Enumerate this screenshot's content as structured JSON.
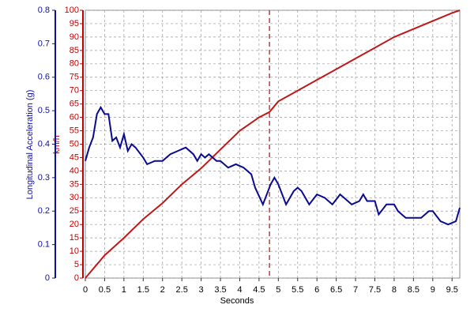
{
  "chart_data": {
    "type": "line",
    "xlabel": "Seconds",
    "ylabel": "Longitudinal Acceleration (g)",
    "y2label": "km/h",
    "xlim": [
      0,
      9.7
    ],
    "xticks": [
      0,
      0.5,
      1,
      1.5,
      2,
      2.5,
      3,
      3.5,
      4,
      4.5,
      5,
      5.5,
      6,
      6.5,
      7,
      7.5,
      8,
      8.5,
      9,
      9.5
    ],
    "ylim": [
      0,
      0.8
    ],
    "yticks": [
      0,
      0.1,
      0.2,
      0.3,
      0.4,
      0.5,
      0.6,
      0.7,
      0.8
    ],
    "y2lim": [
      0,
      100
    ],
    "y2ticks": [
      0,
      5,
      10,
      15,
      20,
      25,
      30,
      35,
      40,
      45,
      50,
      55,
      60,
      65,
      70,
      75,
      80,
      85,
      90,
      95,
      100
    ],
    "grid": true,
    "cursor_x": 4.77,
    "cursor_color": "#a01010",
    "axis_color": "#1010a0",
    "axis2_color": "#c00000",
    "series": [
      {
        "color": "#c01818",
        "axis": "y2",
        "x": [
          0,
          0.5,
          1,
          1.5,
          2,
          2.5,
          3,
          3.5,
          4,
          4.5,
          4.77,
          5,
          5.5,
          6,
          6.5,
          7,
          7.5,
          8,
          8.5,
          9,
          9.5,
          9.7
        ],
        "values": [
          0,
          8.5,
          15,
          22,
          28,
          35,
          41,
          48,
          55,
          60,
          62,
          66,
          70,
          74,
          78,
          82,
          86,
          90,
          93,
          96,
          99,
          100
        ]
      },
      {
        "color": "#0a0a90",
        "x": [
          0,
          0.1,
          0.2,
          0.3,
          0.4,
          0.5,
          0.6,
          0.7,
          0.8,
          0.9,
          1.0,
          1.1,
          1.2,
          1.3,
          1.5,
          1.6,
          1.8,
          2.0,
          2.2,
          2.4,
          2.6,
          2.8,
          2.9,
          3.0,
          3.1,
          3.2,
          3.4,
          3.5,
          3.7,
          3.9,
          4.1,
          4.3,
          4.4,
          4.6,
          4.8,
          4.9,
          5.0,
          5.2,
          5.4,
          5.5,
          5.6,
          5.8,
          6.0,
          6.2,
          6.4,
          6.6,
          6.7,
          6.9,
          7.1,
          7.2,
          7.3,
          7.5,
          7.6,
          7.8,
          8.0,
          8.1,
          8.3,
          8.5,
          8.7,
          8.9,
          9.0,
          9.2,
          9.4,
          9.6,
          9.7
        ],
        "values": [
          0.35,
          0.39,
          0.42,
          0.49,
          0.51,
          0.49,
          0.49,
          0.41,
          0.42,
          0.39,
          0.43,
          0.38,
          0.4,
          0.39,
          0.36,
          0.34,
          0.35,
          0.35,
          0.37,
          0.38,
          0.39,
          0.37,
          0.35,
          0.37,
          0.36,
          0.37,
          0.35,
          0.35,
          0.33,
          0.34,
          0.33,
          0.31,
          0.27,
          0.22,
          0.28,
          0.3,
          0.28,
          0.22,
          0.26,
          0.27,
          0.26,
          0.22,
          0.25,
          0.24,
          0.22,
          0.25,
          0.24,
          0.22,
          0.23,
          0.25,
          0.23,
          0.23,
          0.19,
          0.22,
          0.22,
          0.2,
          0.18,
          0.18,
          0.18,
          0.2,
          0.2,
          0.17,
          0.16,
          0.17,
          0.21
        ]
      }
    ]
  }
}
